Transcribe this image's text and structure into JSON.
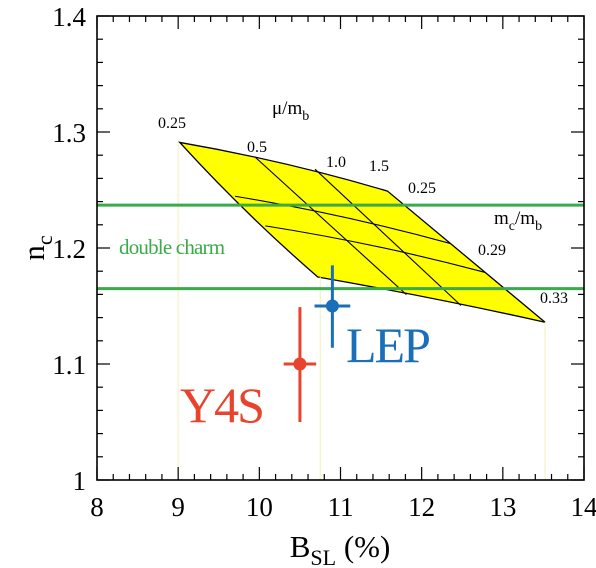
{
  "chart_data": {
    "type": "scatter",
    "title": "",
    "xlabel_main": "B",
    "xlabel_sub": "SL",
    "xlabel_tail": " (%)",
    "ylabel_main": "n",
    "ylabel_sub": "c",
    "xlim": [
      8,
      14
    ],
    "ylim": [
      1.0,
      1.4
    ],
    "x_ticks": [
      8,
      9,
      10,
      11,
      12,
      13,
      14
    ],
    "x_tick_labels": [
      "8",
      "9",
      "10",
      "11",
      "12",
      "13",
      "14"
    ],
    "y_ticks": [
      1.0,
      1.1,
      1.2,
      1.3,
      1.4
    ],
    "y_tick_labels": [
      "1",
      "1.1",
      "1.2",
      "1.3",
      "1.4"
    ],
    "x_minor_step": 0.2,
    "y_minor_step": 0.02,
    "grid": false,
    "band": {
      "label": "double charm",
      "y_low": 1.165,
      "y_high": 1.237,
      "color": "#3aaa4a"
    },
    "prediction_region": {
      "fill": "#ffff00",
      "mu_label_main": "μ/m",
      "mu_label_sub": "b",
      "mc_label_main": "m",
      "mc_label_sub": "c",
      "mc_label_mid": "/m",
      "mc_label_sub2": "b",
      "mu_values": [
        "0.25",
        "0.5",
        "1.0",
        "1.5"
      ],
      "mc_values": [
        "0.25",
        "0.29",
        "0.33"
      ],
      "corners": {
        "top_left": [
          9.02,
          1.291
        ],
        "top_right": [
          11.58,
          1.249
        ],
        "bottom_left": [
          10.72,
          1.175
        ],
        "bottom_right": [
          13.52,
          1.136
        ]
      }
    },
    "series": [
      {
        "name": "LEP",
        "color": "#1a6fb8",
        "x": 10.9,
        "y": 1.15,
        "x_err": [
          0.22,
          0.22
        ],
        "y_err": [
          0.036,
          0.035
        ]
      },
      {
        "name": "Y4S",
        "color": "#e8432d",
        "x": 10.5,
        "y": 1.1,
        "x_err": [
          0.2,
          0.2
        ],
        "y_err": [
          0.05,
          0.049
        ]
      }
    ],
    "reference_lines_x": [
      9.0,
      10.75,
      13.52
    ]
  }
}
